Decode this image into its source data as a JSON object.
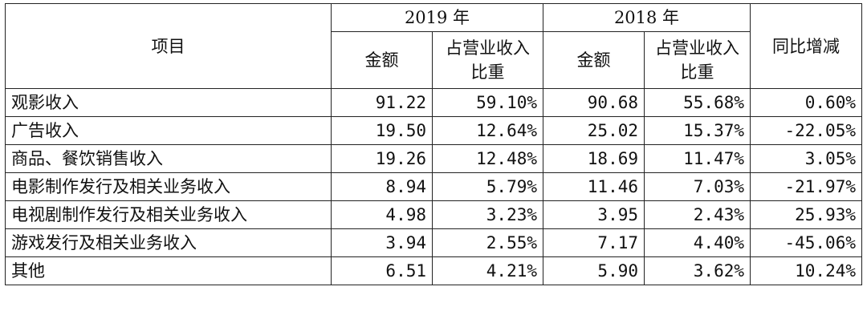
{
  "table": {
    "header": {
      "item": "项目",
      "year_2019": "2019 年",
      "year_2018": "2018 年",
      "yoy": "同比增减",
      "amount": "金额",
      "share": "占营业收入比重"
    },
    "rows": [
      {
        "item": "观影收入",
        "amount_2019": "91.22",
        "share_2019": "59.10%",
        "amount_2018": "90.68",
        "share_2018": "55.68%",
        "yoy": "0.60%"
      },
      {
        "item": "广告收入",
        "amount_2019": "19.50",
        "share_2019": "12.64%",
        "amount_2018": "25.02",
        "share_2018": "15.37%",
        "yoy": "-22.05%"
      },
      {
        "item": "商品、餐饮销售收入",
        "amount_2019": "19.26",
        "share_2019": "12.48%",
        "amount_2018": "18.69",
        "share_2018": "11.47%",
        "yoy": "3.05%"
      },
      {
        "item": "电影制作发行及相关业务收入",
        "amount_2019": "8.94",
        "share_2019": "5.79%",
        "amount_2018": "11.46",
        "share_2018": "7.03%",
        "yoy": "-21.97%"
      },
      {
        "item": "电视剧制作发行及相关业务收入",
        "amount_2019": "4.98",
        "share_2019": "3.23%",
        "amount_2018": "3.95",
        "share_2018": "2.43%",
        "yoy": "25.93%"
      },
      {
        "item": "游戏发行及相关业务收入",
        "amount_2019": "3.94",
        "share_2019": "2.55%",
        "amount_2018": "7.17",
        "share_2018": "4.40%",
        "yoy": "-45.06%"
      },
      {
        "item": "其他",
        "amount_2019": "6.51",
        "share_2019": "4.21%",
        "amount_2018": "5.90",
        "share_2018": "3.62%",
        "yoy": "10.24%"
      }
    ]
  }
}
